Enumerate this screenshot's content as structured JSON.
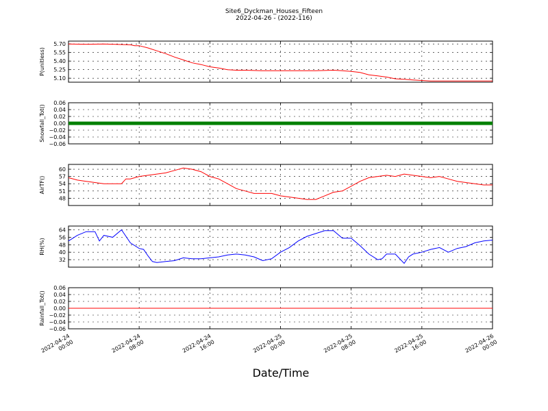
{
  "figure": {
    "title": "Site6_Dyckman_Houses_Fifteen",
    "subtitle": "2022-04-26 - (2022-116)",
    "xlabel": "Date/Time"
  },
  "chart_data": [
    {
      "type": "line",
      "ylabel": "P(unitless)",
      "color": "#ff0000",
      "xlim": [
        0,
        48
      ],
      "ylim": [
        5.03,
        5.75
      ],
      "yticks": [
        "5.70",
        "5.55",
        "5.40",
        "5.25",
        "5.10"
      ],
      "ytick_values": [
        5.7,
        5.55,
        5.4,
        5.25,
        5.1
      ],
      "grid": true,
      "series": [
        {
          "x": [
            0,
            2,
            4,
            6,
            7,
            7.5,
            8,
            9,
            10,
            11,
            12,
            13,
            14,
            15,
            16,
            17,
            18,
            19,
            20,
            22,
            24,
            26,
            28,
            30,
            31,
            32,
            33,
            34,
            35,
            36,
            37,
            38,
            39,
            40,
            41,
            42,
            44,
            46,
            48
          ],
          "y": [
            5.7,
            5.695,
            5.7,
            5.69,
            5.685,
            5.67,
            5.67,
            5.63,
            5.58,
            5.53,
            5.47,
            5.42,
            5.37,
            5.34,
            5.3,
            5.28,
            5.25,
            5.24,
            5.24,
            5.23,
            5.23,
            5.23,
            5.23,
            5.24,
            5.23,
            5.22,
            5.2,
            5.16,
            5.14,
            5.12,
            5.09,
            5.08,
            5.07,
            5.06,
            5.05,
            5.05,
            5.05,
            5.05,
            5.05
          ]
        }
      ]
    },
    {
      "type": "line",
      "ylabel": "Snowfall_Tot()",
      "color": "#008000",
      "xlim": [
        0,
        48
      ],
      "ylim": [
        -0.06,
        0.06
      ],
      "yticks": [
        "0.06",
        "0.04",
        "0.02",
        "0.00",
        "−0.02",
        "−0.04",
        "−0.06"
      ],
      "ytick_values": [
        0.06,
        0.04,
        0.02,
        0,
        -0.02,
        -0.04,
        -0.06
      ],
      "grid": true,
      "markers": true,
      "series": [
        {
          "x": [
            0,
            48
          ],
          "y": [
            0,
            0
          ]
        }
      ]
    },
    {
      "type": "line",
      "ylabel": "AirTF()",
      "color": "#ff0000",
      "xlim": [
        0,
        48
      ],
      "ylim": [
        45,
        62
      ],
      "yticks": [
        "60",
        "57",
        "54",
        "51",
        "48"
      ],
      "ytick_values": [
        60,
        57,
        54,
        51,
        48
      ],
      "grid": true,
      "series": [
        {
          "x": [
            0,
            1,
            2,
            3,
            4,
            5,
            6,
            6.5,
            7,
            8,
            9,
            10,
            11,
            12,
            13,
            14,
            15,
            16,
            17,
            18,
            19,
            20,
            21,
            22,
            23,
            24,
            25,
            26,
            27,
            28,
            29,
            30,
            31,
            32,
            33,
            34,
            35,
            36,
            37,
            38,
            39,
            40,
            41,
            42,
            43,
            44,
            45,
            46,
            47,
            48
          ],
          "y": [
            56.5,
            55.5,
            55,
            54.5,
            54,
            54,
            54,
            56,
            56,
            57,
            57.5,
            58,
            58.5,
            59.5,
            60.5,
            60,
            59,
            57,
            56,
            54,
            52,
            51,
            50,
            50,
            50,
            49,
            48.5,
            48,
            47.5,
            47.5,
            49,
            50.5,
            51,
            53,
            55,
            56.5,
            57,
            57.5,
            57,
            58,
            57.5,
            57,
            56.5,
            57,
            56,
            55,
            54.5,
            54,
            53.5,
            53.5
          ]
        }
      ]
    },
    {
      "type": "line",
      "ylabel": "RH(%)",
      "color": "#0000ff",
      "xlim": [
        0,
        48
      ],
      "ylim": [
        24,
        68
      ],
      "yticks": [
        "64",
        "56",
        "48",
        "40",
        "32"
      ],
      "ytick_values": [
        64,
        56,
        48,
        40,
        32
      ],
      "grid": true,
      "series": [
        {
          "x": [
            0,
            1,
            2,
            3,
            3.5,
            4,
            5,
            6,
            7,
            8,
            8.5,
            9,
            9.5,
            10,
            11,
            12,
            13,
            14,
            15,
            16,
            17,
            18,
            19,
            20,
            21,
            22,
            23,
            24,
            25,
            26,
            27,
            28,
            29,
            30,
            31,
            32,
            33,
            34,
            35,
            35.5,
            36,
            37,
            38,
            38.5,
            39,
            40,
            41,
            42,
            43,
            44,
            45,
            46,
            47,
            48
          ],
          "y": [
            52,
            58,
            62,
            62,
            52,
            58,
            56,
            64,
            50,
            44,
            43,
            36,
            30,
            29,
            30,
            31,
            34,
            33,
            33,
            34,
            35,
            37,
            38,
            37,
            35,
            31,
            33,
            40,
            45,
            52,
            57,
            60,
            63,
            63,
            55,
            55,
            47,
            38,
            32,
            33,
            38,
            38,
            28,
            35,
            38,
            40,
            43,
            45,
            40,
            44,
            46,
            50,
            52,
            53
          ]
        }
      ]
    },
    {
      "type": "line",
      "ylabel": "Rainfall_Tot()",
      "color": "#ff0000",
      "xlim": [
        0,
        48
      ],
      "ylim": [
        -0.06,
        0.06
      ],
      "yticks": [
        "0.06",
        "0.04",
        "0.02",
        "0.00",
        "−0.02",
        "−0.04",
        "−0.06"
      ],
      "ytick_values": [
        0.06,
        0.04,
        0.02,
        0,
        -0.02,
        -0.04,
        -0.06
      ],
      "grid": true,
      "series": [
        {
          "x": [
            0,
            48
          ],
          "y": [
            0,
            0
          ]
        }
      ]
    }
  ],
  "x_ticks": [
    {
      "line1": "2022-04-24",
      "line2": "00:00",
      "value": 0
    },
    {
      "line1": "2022-04-24",
      "line2": "08:00",
      "value": 8
    },
    {
      "line1": "2022-04-24",
      "line2": "16:00",
      "value": 16
    },
    {
      "line1": "2022-04-25",
      "line2": "00:00",
      "value": 24
    },
    {
      "line1": "2022-04-25",
      "line2": "08:00",
      "value": 32
    },
    {
      "line1": "2022-04-25",
      "line2": "16:00",
      "value": 40
    },
    {
      "line1": "2022-04-26",
      "line2": "00:00",
      "value": 48
    }
  ]
}
